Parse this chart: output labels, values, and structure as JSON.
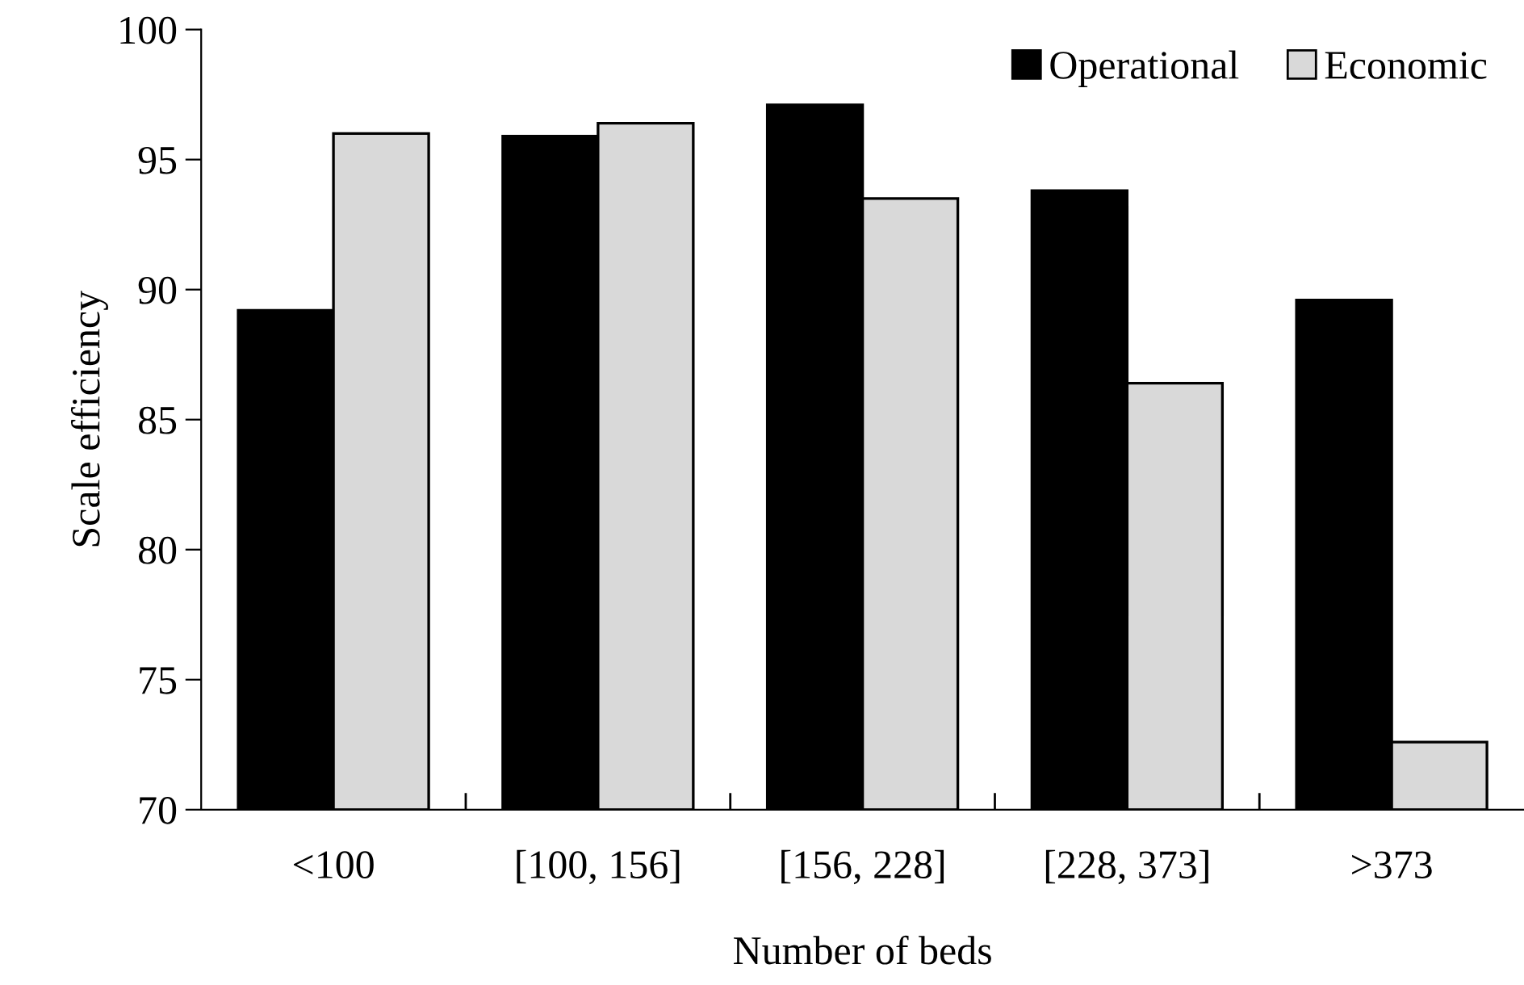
{
  "chart_data": {
    "type": "bar",
    "xlabel": "Number of beds",
    "ylabel": "Scale efficiency",
    "categories": [
      "<100",
      "[100, 156]",
      "[156, 228]",
      "[228, 373]",
      ">373"
    ],
    "series": [
      {
        "name": "Operational",
        "color": "#000000",
        "values": [
          89.2,
          95.9,
          97.1,
          93.8,
          89.6
        ]
      },
      {
        "name": "Economic",
        "color": "#d9d9d9",
        "values": [
          96.0,
          96.4,
          93.5,
          86.4,
          72.6
        ]
      }
    ],
    "ylim": [
      70,
      100
    ],
    "yticks": [
      70,
      75,
      80,
      85,
      90,
      95,
      100
    ],
    "grid": false,
    "legend": "top right"
  }
}
